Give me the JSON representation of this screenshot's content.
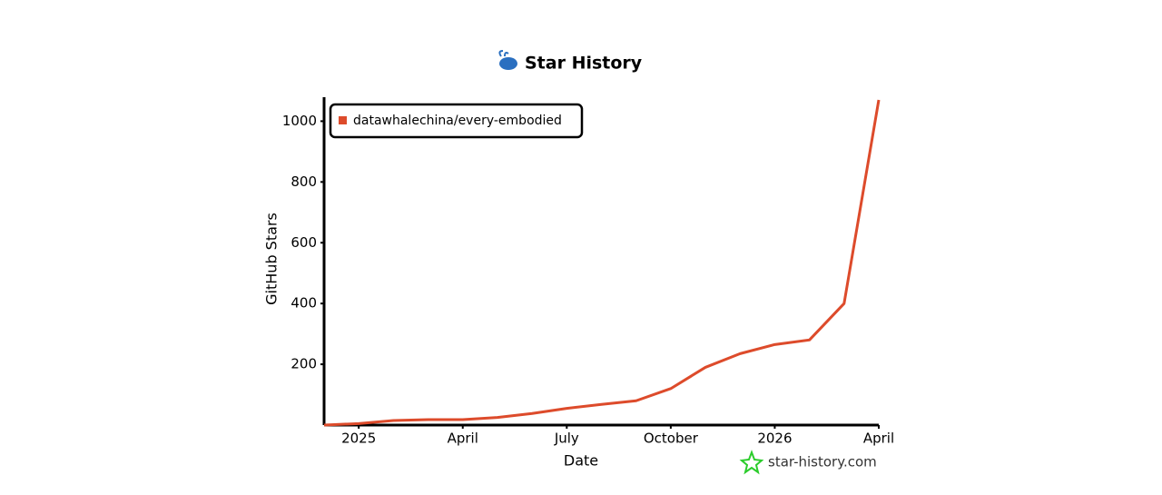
{
  "chart_data": {
    "type": "line",
    "title": "Star History",
    "xlabel": "Date",
    "ylabel": "GitHub Stars",
    "x": [
      "2024-12",
      "2025-01",
      "2025-02",
      "2025-03",
      "2025-04",
      "2025-05",
      "2025-06",
      "2025-07",
      "2025-08",
      "2025-09",
      "2025-10",
      "2025-11",
      "2025-12",
      "2026-01",
      "2026-02",
      "2026-03",
      "2026-04"
    ],
    "series": [
      {
        "name": "datawhalechina/every-embodied",
        "color": "#dd4b2b",
        "values": [
          0,
          5,
          15,
          18,
          18,
          25,
          38,
          55,
          68,
          80,
          120,
          190,
          235,
          265,
          280,
          400,
          1070
        ]
      }
    ],
    "xlim": [
      "2024-12",
      "2026-04"
    ],
    "xticks": [
      {
        "value": "2025-01",
        "label": "2025"
      },
      {
        "value": "2025-04",
        "label": "April"
      },
      {
        "value": "2025-07",
        "label": "July"
      },
      {
        "value": "2025-10",
        "label": "October"
      },
      {
        "value": "2026-01",
        "label": "2026"
      },
      {
        "value": "2026-04",
        "label": "April"
      }
    ],
    "ylim": [
      0,
      1070
    ],
    "yticks": [
      200,
      400,
      600,
      800,
      1000
    ],
    "legend": "upper left",
    "watermark": "star-history.com"
  }
}
